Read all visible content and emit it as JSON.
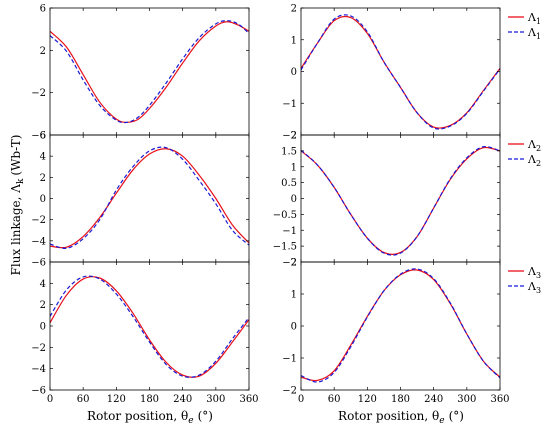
{
  "chart_data": {
    "type": "line",
    "xlabel": "Rotor position, θ",
    "xlabel_sub": "e",
    "xlabel_unit": "(°)",
    "ylabel": "Flux linkage, Λ",
    "ylabel_sub": "k",
    "ylabel_unit": "(Wb-T)",
    "xlim": [
      0,
      360
    ],
    "xticks": [
      0,
      60,
      120,
      180,
      240,
      300,
      360
    ],
    "xtick_labels": [
      "0",
      "60",
      "120",
      "180",
      "240",
      "300",
      "360"
    ],
    "grid": false,
    "legend_placement": "right, outside, one per row",
    "series_styles": [
      {
        "color": "#e8101a",
        "dash": "solid"
      },
      {
        "color": "#1a1ad6",
        "dash": "dashed"
      }
    ],
    "panels": [
      {
        "row": 0,
        "col": 0,
        "ylim": [
          -6,
          6
        ],
        "yticks": [
          -6,
          -2,
          2,
          6
        ],
        "ytick_labels": [
          "−6",
          "−2",
          "2",
          "6"
        ],
        "series": [
          {
            "values": [
              [
                0,
                3.8
              ],
              [
                30,
                2.3
              ],
              [
                60,
                -0.3
              ],
              [
                90,
                -2.9
              ],
              [
                120,
                -4.5
              ],
              [
                140,
                -4.8
              ],
              [
                160,
                -4.5
              ],
              [
                180,
                -3.5
              ],
              [
                210,
                -1.5
              ],
              [
                240,
                0.8
              ],
              [
                270,
                2.9
              ],
              [
                300,
                4.3
              ],
              [
                320,
                4.7
              ],
              [
                340,
                4.4
              ],
              [
                360,
                3.8
              ]
            ]
          },
          {
            "values": [
              [
                0,
                3.4
              ],
              [
                30,
                1.9
              ],
              [
                60,
                -0.8
              ],
              [
                90,
                -3.2
              ],
              [
                120,
                -4.6
              ],
              [
                140,
                -4.8
              ],
              [
                160,
                -4.3
              ],
              [
                180,
                -3.2
              ],
              [
                210,
                -1.1
              ],
              [
                240,
                1.2
              ],
              [
                270,
                3.2
              ],
              [
                300,
                4.5
              ],
              [
                320,
                4.8
              ],
              [
                340,
                4.5
              ],
              [
                360,
                3.6
              ]
            ]
          }
        ]
      },
      {
        "row": 0,
        "col": 1,
        "ylim": [
          -2,
          2
        ],
        "yticks": [
          -2,
          -1,
          0,
          1,
          2
        ],
        "ytick_labels": [
          "−2",
          "−1",
          "0",
          "1",
          "2"
        ],
        "legend": [
          "Λ1",
          "Λ1"
        ],
        "series": [
          {
            "values": [
              [
                0,
                0.1
              ],
              [
                30,
                0.9
              ],
              [
                60,
                1.6
              ],
              [
                90,
                1.7
              ],
              [
                120,
                1.2
              ],
              [
                150,
                0.3
              ],
              [
                180,
                -0.5
              ],
              [
                210,
                -1.3
              ],
              [
                240,
                -1.75
              ],
              [
                270,
                -1.7
              ],
              [
                300,
                -1.3
              ],
              [
                330,
                -0.6
              ],
              [
                360,
                0.1
              ]
            ]
          },
          {
            "values": [
              [
                0,
                0.05
              ],
              [
                30,
                0.9
              ],
              [
                60,
                1.65
              ],
              [
                90,
                1.75
              ],
              [
                120,
                1.25
              ],
              [
                150,
                0.3
              ],
              [
                180,
                -0.5
              ],
              [
                210,
                -1.3
              ],
              [
                240,
                -1.78
              ],
              [
                270,
                -1.72
              ],
              [
                300,
                -1.32
              ],
              [
                330,
                -0.62
              ],
              [
                360,
                0.08
              ]
            ]
          }
        ]
      },
      {
        "row": 1,
        "col": 0,
        "ylim": [
          -6,
          6
        ],
        "yticks": [
          -6,
          -4,
          -2,
          0,
          2,
          4,
          6
        ],
        "ytick_labels": [
          "−6",
          "−4",
          "−2",
          "0",
          "2",
          "4",
          "6"
        ],
        "series": [
          {
            "values": [
              [
                0,
                -4.5
              ],
              [
                30,
                -4.6
              ],
              [
                60,
                -3.6
              ],
              [
                90,
                -1.8
              ],
              [
                120,
                0.5
              ],
              [
                150,
                2.7
              ],
              [
                180,
                4.2
              ],
              [
                210,
                4.7
              ],
              [
                240,
                4.0
              ],
              [
                270,
                2.2
              ],
              [
                300,
                0.0
              ],
              [
                330,
                -2.5
              ],
              [
                360,
                -4.2
              ]
            ]
          },
          {
            "values": [
              [
                0,
                -4.3
              ],
              [
                30,
                -4.7
              ],
              [
                60,
                -3.8
              ],
              [
                90,
                -2.0
              ],
              [
                120,
                0.8
              ],
              [
                150,
                3.0
              ],
              [
                180,
                4.5
              ],
              [
                210,
                4.8
              ],
              [
                240,
                3.7
              ],
              [
                270,
                1.7
              ],
              [
                300,
                -0.5
              ],
              [
                330,
                -3.0
              ],
              [
                360,
                -4.4
              ]
            ]
          }
        ]
      },
      {
        "row": 1,
        "col": 1,
        "ylim": [
          -2,
          2
        ],
        "yticks": [
          -2,
          -1.5,
          -1,
          -0.5,
          0,
          0.5,
          1,
          1.5,
          2
        ],
        "ytick_labels": [
          "−2",
          "−1.5",
          "−1",
          "−0.5",
          "0",
          "0.5",
          "1",
          "1.5",
          "2"
        ],
        "legend": [
          "Λ2",
          "Λ2"
        ],
        "series": [
          {
            "values": [
              [
                0,
                1.5
              ],
              [
                30,
                1.05
              ],
              [
                60,
                0.35
              ],
              [
                90,
                -0.5
              ],
              [
                120,
                -1.25
              ],
              [
                150,
                -1.7
              ],
              [
                180,
                -1.7
              ],
              [
                210,
                -1.2
              ],
              [
                240,
                -0.3
              ],
              [
                270,
                0.6
              ],
              [
                300,
                1.25
              ],
              [
                330,
                1.6
              ],
              [
                360,
                1.5
              ]
            ]
          },
          {
            "values": [
              [
                0,
                1.52
              ],
              [
                30,
                1.05
              ],
              [
                60,
                0.35
              ],
              [
                90,
                -0.5
              ],
              [
                120,
                -1.25
              ],
              [
                150,
                -1.72
              ],
              [
                180,
                -1.72
              ],
              [
                210,
                -1.2
              ],
              [
                240,
                -0.3
              ],
              [
                270,
                0.62
              ],
              [
                300,
                1.28
              ],
              [
                330,
                1.63
              ],
              [
                360,
                1.5
              ]
            ]
          }
        ]
      },
      {
        "row": 2,
        "col": 0,
        "ylim": [
          -6,
          6
        ],
        "yticks": [
          -6,
          -4,
          -2,
          0,
          2,
          4
        ],
        "ytick_labels": [
          "−6",
          "−4",
          "−2",
          "0",
          "2",
          "4"
        ],
        "series": [
          {
            "values": [
              [
                0,
                0.3
              ],
              [
                30,
                2.9
              ],
              [
                60,
                4.4
              ],
              [
                90,
                4.5
              ],
              [
                120,
                3.3
              ],
              [
                150,
                1.2
              ],
              [
                180,
                -1.3
              ],
              [
                210,
                -3.4
              ],
              [
                240,
                -4.6
              ],
              [
                270,
                -4.7
              ],
              [
                300,
                -3.5
              ],
              [
                330,
                -1.5
              ],
              [
                360,
                0.6
              ]
            ]
          },
          {
            "values": [
              [
                0,
                0.9
              ],
              [
                30,
                3.4
              ],
              [
                60,
                4.6
              ],
              [
                90,
                4.4
              ],
              [
                120,
                3.0
              ],
              [
                150,
                0.9
              ],
              [
                180,
                -1.5
              ],
              [
                210,
                -3.6
              ],
              [
                240,
                -4.7
              ],
              [
                270,
                -4.6
              ],
              [
                300,
                -3.3
              ],
              [
                330,
                -1.2
              ],
              [
                360,
                0.8
              ]
            ]
          }
        ]
      },
      {
        "row": 2,
        "col": 1,
        "ylim": [
          -2,
          2
        ],
        "yticks": [
          -2,
          -1,
          0,
          1,
          2
        ],
        "ytick_labels": [
          "−2",
          "−1",
          "0",
          "1",
          "2"
        ],
        "legend": [
          "Λ3",
          "Λ3"
        ],
        "series": [
          {
            "values": [
              [
                0,
                -1.6
              ],
              [
                30,
                -1.7
              ],
              [
                60,
                -1.4
              ],
              [
                90,
                -0.6
              ],
              [
                120,
                0.3
              ],
              [
                150,
                1.1
              ],
              [
                180,
                1.6
              ],
              [
                210,
                1.75
              ],
              [
                240,
                1.45
              ],
              [
                270,
                0.7
              ],
              [
                300,
                -0.25
              ],
              [
                330,
                -1.1
              ],
              [
                360,
                -1.6
              ]
            ]
          },
          {
            "values": [
              [
                0,
                -1.55
              ],
              [
                30,
                -1.75
              ],
              [
                60,
                -1.45
              ],
              [
                90,
                -0.65
              ],
              [
                120,
                0.28
              ],
              [
                150,
                1.1
              ],
              [
                180,
                1.62
              ],
              [
                210,
                1.78
              ],
              [
                240,
                1.48
              ],
              [
                270,
                0.72
              ],
              [
                300,
                -0.25
              ],
              [
                330,
                -1.1
              ],
              [
                360,
                -1.62
              ]
            ]
          }
        ]
      }
    ]
  }
}
